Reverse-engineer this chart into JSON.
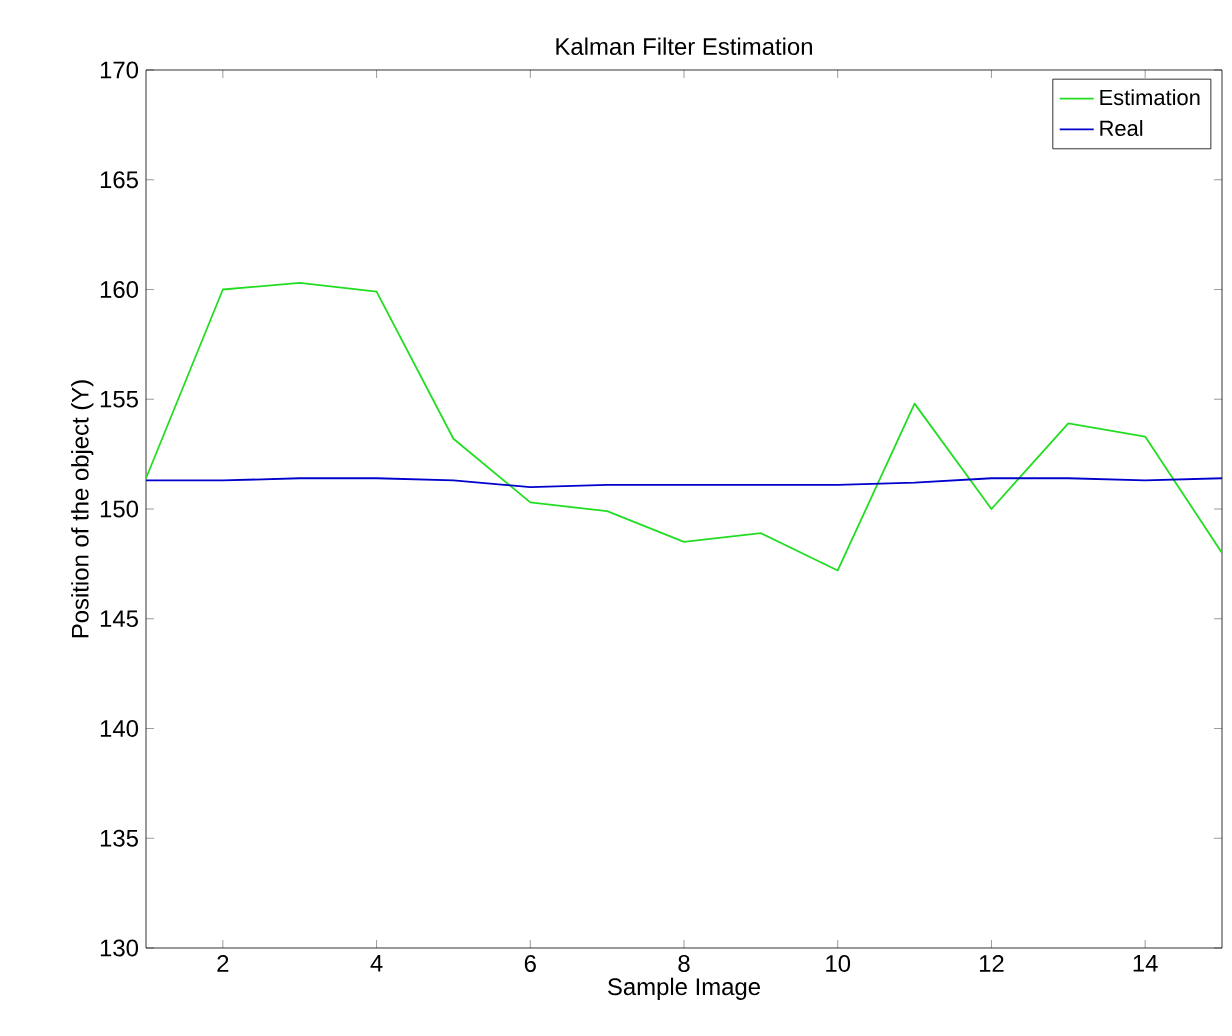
{
  "chart_data": {
    "type": "line",
    "title": "Kalman Filter Estimation",
    "xlabel": "Sample Image",
    "ylabel": "Position of the object (Y)",
    "x": [
      1,
      2,
      3,
      4,
      5,
      6,
      7,
      8,
      9,
      10,
      11,
      12,
      13,
      14,
      15
    ],
    "series": [
      {
        "name": "Estimation",
        "color": "#22dd22",
        "values": [
          151.4,
          160.0,
          160.3,
          159.9,
          153.2,
          150.3,
          149.9,
          148.5,
          148.9,
          147.2,
          154.8,
          150.0,
          153.9,
          153.3,
          148.0
        ]
      },
      {
        "name": "Real",
        "color": "#0000cc",
        "values": [
          151.3,
          151.3,
          151.4,
          151.4,
          151.3,
          151.0,
          151.1,
          151.1,
          151.1,
          151.1,
          151.2,
          151.4,
          151.4,
          151.3,
          151.4
        ]
      }
    ],
    "xlim": [
      1,
      15
    ],
    "ylim": [
      130,
      170
    ],
    "xticks": [
      2,
      4,
      6,
      8,
      10,
      12,
      14
    ],
    "yticks": [
      130,
      135,
      140,
      145,
      150,
      155,
      160,
      165,
      170
    ],
    "legend": "top right",
    "grid": false,
    "marker": "none",
    "line_style": "solid"
  }
}
